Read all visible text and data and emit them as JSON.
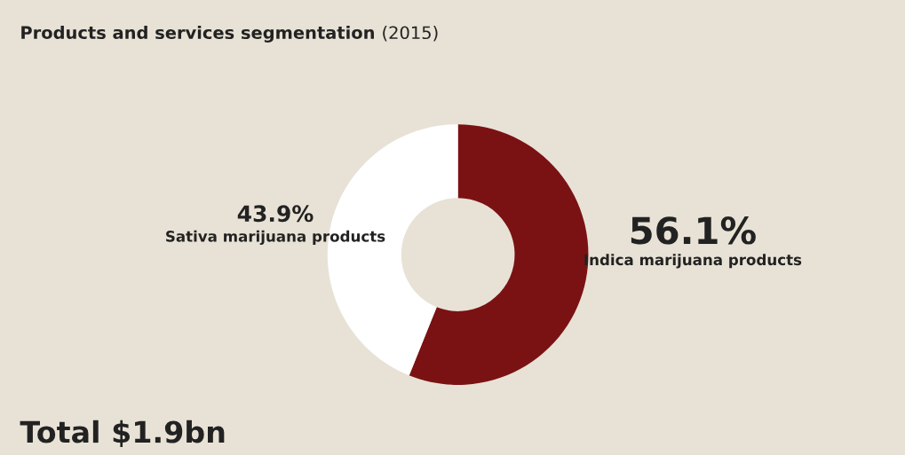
{
  "chart_data": {
    "type": "donut",
    "title": "Products and services segmentation",
    "subtitle": "(2015)",
    "categories": [
      "Indica marijuana products",
      "Sativa marijuana products"
    ],
    "values": [
      56.1,
      43.9
    ],
    "colors": [
      "#7a1214",
      "#ffffff"
    ],
    "value_labels": [
      "56.1%",
      "43.9%"
    ],
    "annotations": [
      "Total $1.9bn"
    ],
    "legend": false
  }
}
